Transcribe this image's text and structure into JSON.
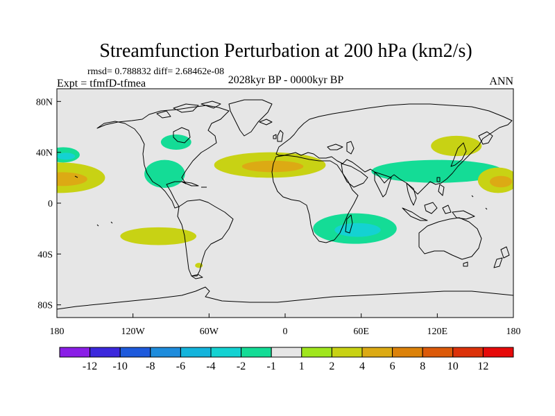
{
  "chart_data": {
    "type": "heatmap",
    "title": "Streamfunction Perturbation at 200 hPa (km2/s)",
    "stats": "rmsd= 0.788832 diff= 2.68462e-08",
    "left_label": "Expt = tfmfD-tfmea",
    "center_label": "2028kyr BP - 0000kyr BP",
    "right_label": "ANN",
    "xlim": [
      -180,
      180
    ],
    "ylim": [
      -90,
      90
    ],
    "x_ticks": [
      {
        "value": -180,
        "label": "180"
      },
      {
        "value": -120,
        "label": "120W"
      },
      {
        "value": -60,
        "label": "60W"
      },
      {
        "value": 0,
        "label": "0"
      },
      {
        "value": 60,
        "label": "60E"
      },
      {
        "value": 120,
        "label": "120E"
      },
      {
        "value": 180,
        "label": "180"
      }
    ],
    "y_ticks": [
      {
        "value": 80,
        "label": "80N"
      },
      {
        "value": 40,
        "label": "40N"
      },
      {
        "value": 0,
        "label": "0"
      },
      {
        "value": -40,
        "label": "40S"
      },
      {
        "value": -80,
        "label": "80S"
      }
    ],
    "colorbar": {
      "levels": [
        "-12",
        "-10",
        "-8",
        "-6",
        "-4",
        "-2",
        "-1",
        "1",
        "2",
        "4",
        "6",
        "8",
        "10",
        "12"
      ],
      "colors": [
        "#8a1ee6",
        "#3c28dc",
        "#1e5adc",
        "#1e8cdc",
        "#14b4dc",
        "#14d2d2",
        "#14dc96",
        "#e6e6e6",
        "#a0e61e",
        "#c8d214",
        "#dcaa14",
        "#dc820a",
        "#dc5a0a",
        "#dc320a",
        "#e60a0a"
      ]
    },
    "anomalies": [
      {
        "name": "north-pacific-east-pos",
        "lon": -178,
        "lat": 20,
        "rx": 36,
        "ry": 12,
        "level": 2,
        "core": 4
      },
      {
        "name": "north-pacific-east-neg",
        "lon": -175,
        "lat": 38,
        "rx": 13,
        "ry": 6,
        "level": -1,
        "core": -2
      },
      {
        "name": "canada-neg",
        "lon": -86,
        "lat": 48,
        "rx": 12,
        "ry": 6,
        "level": -1
      },
      {
        "name": "gulf-caribbean-neg",
        "lon": -95,
        "lat": 23,
        "rx": 16,
        "ry": 11,
        "level": -1
      },
      {
        "name": "north-atlantic-africa-pos",
        "lon": -12,
        "lat": 30,
        "rx": 44,
        "ry": 10,
        "level": 2,
        "core": 4
      },
      {
        "name": "south-pacific-pos",
        "lon": -100,
        "lat": -26,
        "rx": 30,
        "ry": 7,
        "level": 2
      },
      {
        "name": "patagonia-pos",
        "lon": -68,
        "lat": -49,
        "rx": 3,
        "ry": 2,
        "level": 2
      },
      {
        "name": "south-indian-ocean-neg",
        "lon": 55,
        "lat": -20,
        "rx": 33,
        "ry": 12,
        "level": -1,
        "core": -2
      },
      {
        "name": "east-asia-neg",
        "lon": 120,
        "lat": 25,
        "rx": 52,
        "ry": 9,
        "level": -1
      },
      {
        "name": "japan-pos",
        "lon": 135,
        "lat": 45,
        "rx": 20,
        "ry": 8,
        "level": 2
      },
      {
        "name": "west-pacific-pos",
        "lon": 168,
        "lat": 18,
        "rx": 16,
        "ry": 10,
        "level": 2,
        "core": 4
      }
    ]
  }
}
